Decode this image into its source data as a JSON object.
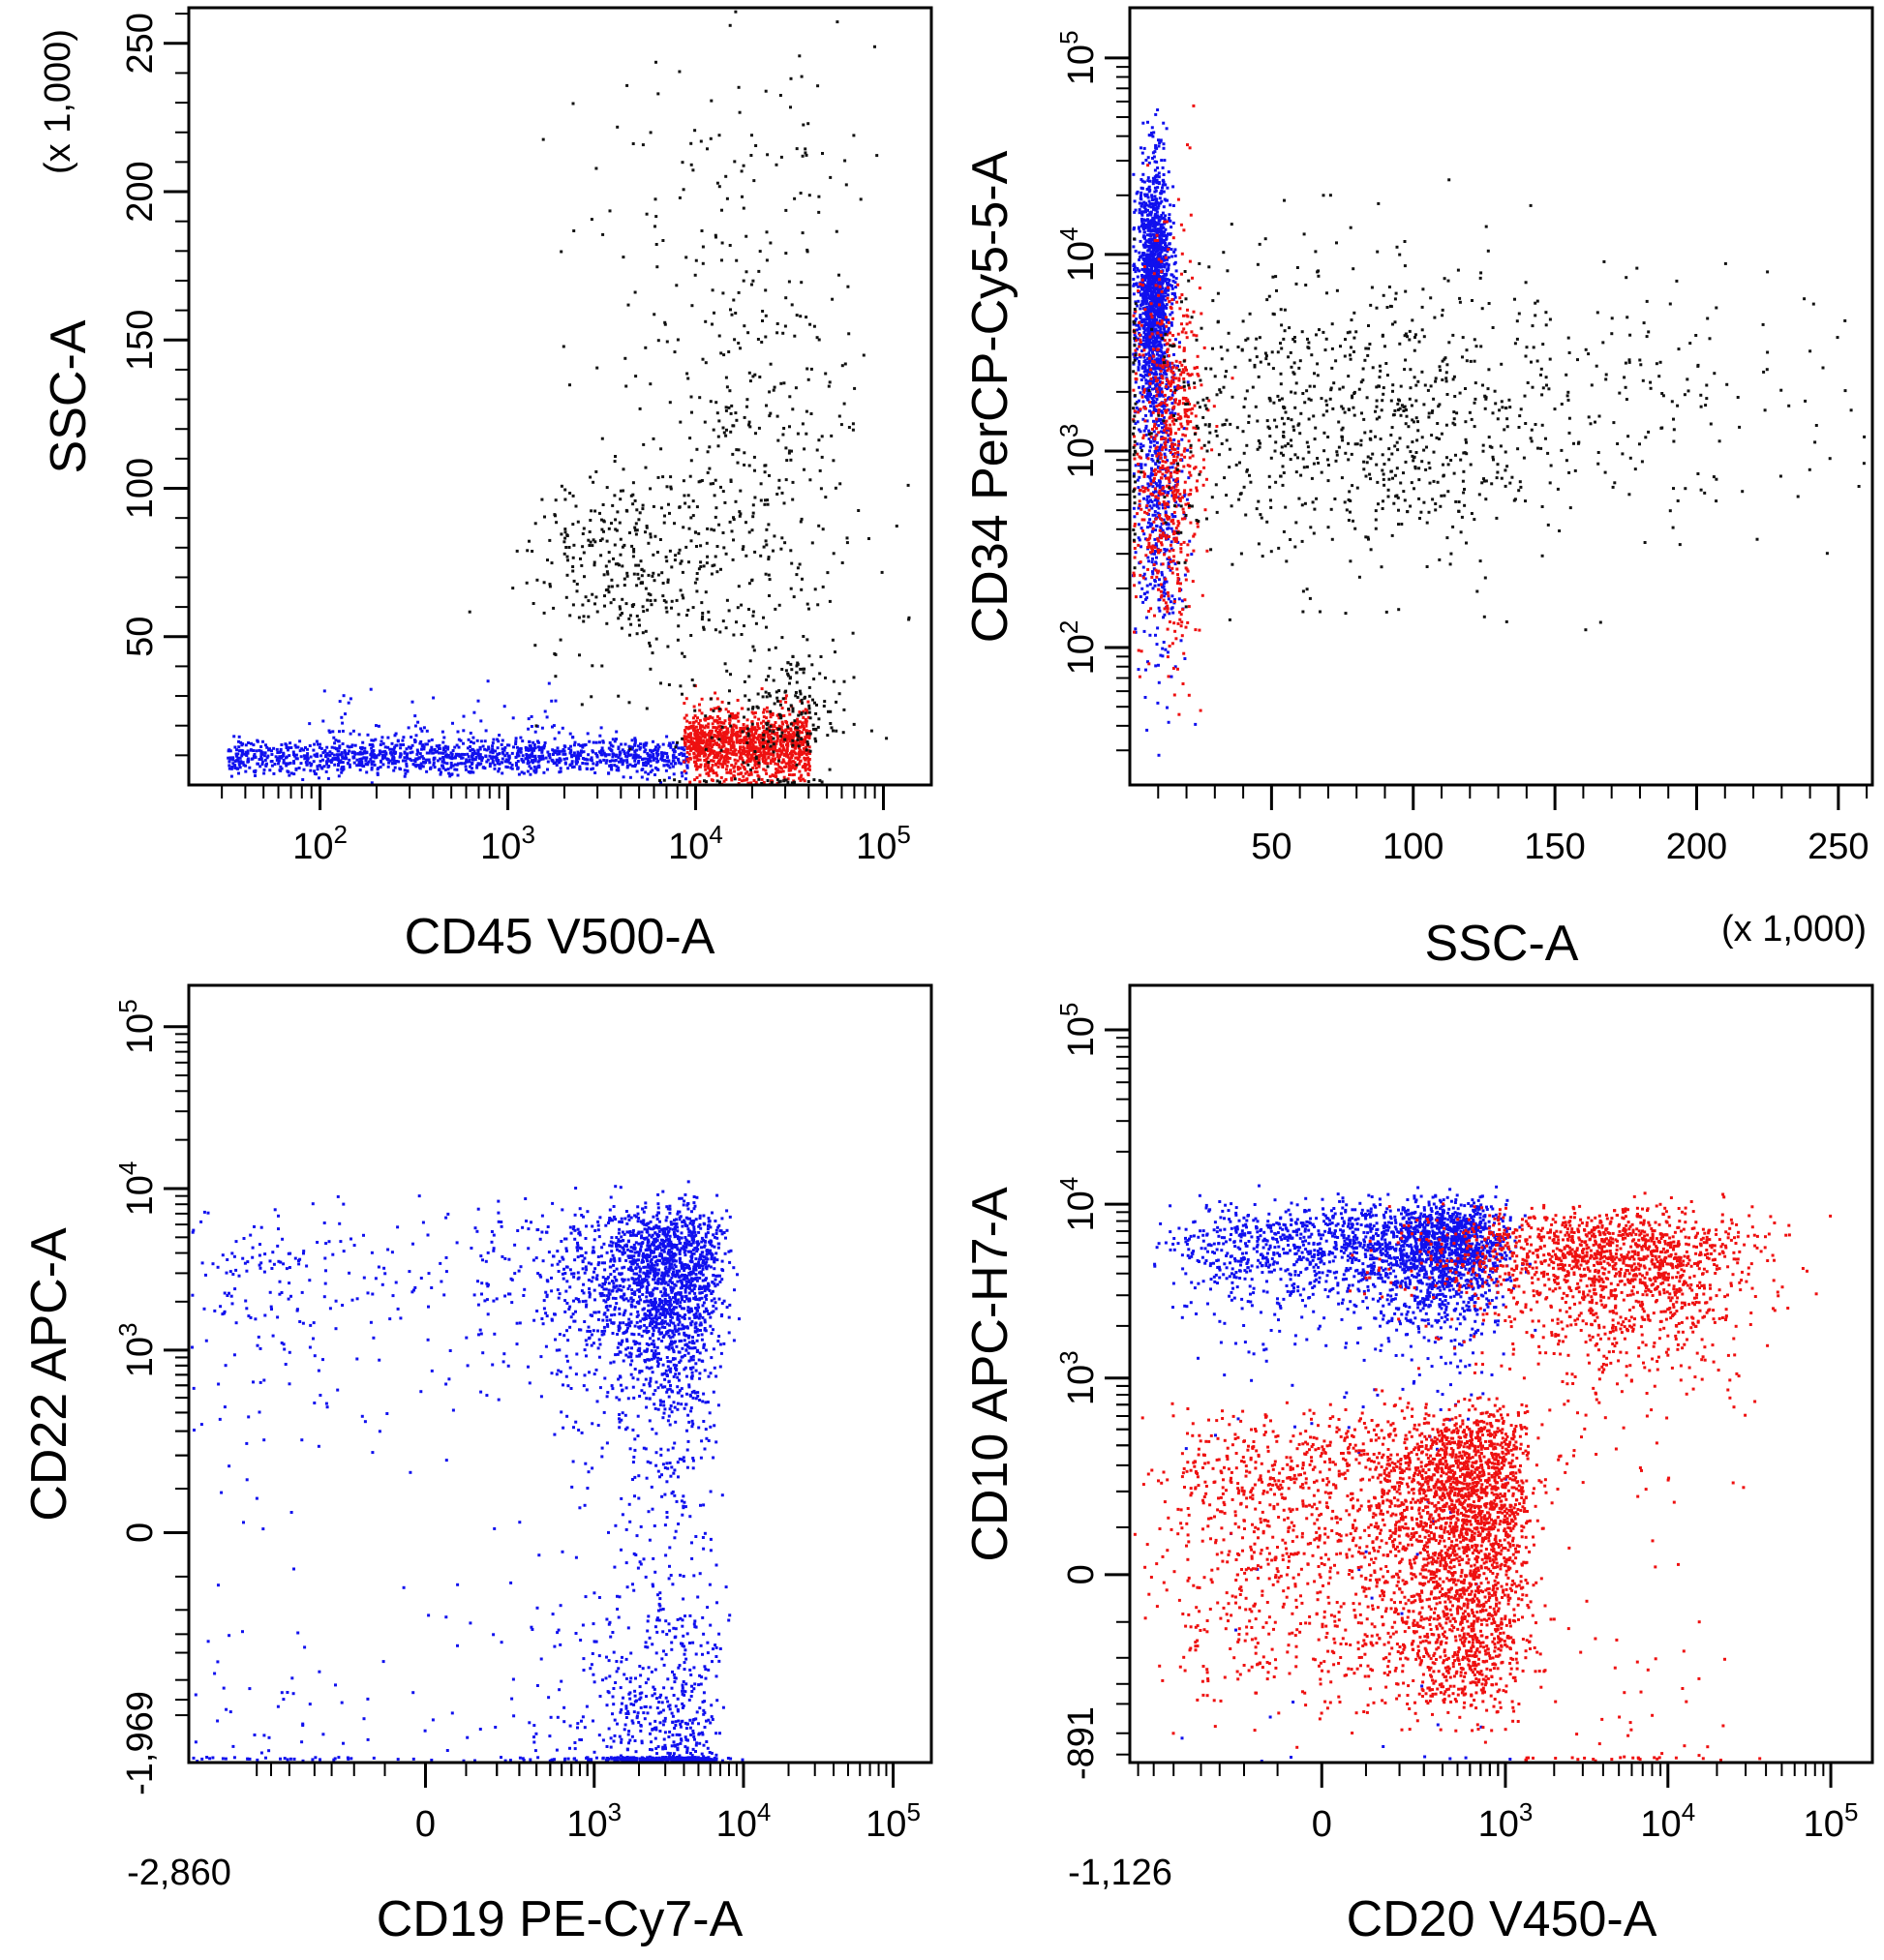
{
  "figure": {
    "colors": {
      "background": "#ffffff",
      "axis": "#000000",
      "blue": "#1010ee",
      "red": "#ee1010",
      "black": "#111111"
    }
  },
  "chart_data": [
    {
      "id": "tl",
      "type": "scatter",
      "xlabel": "CD45 V500-A",
      "ylabel": "SSC-A",
      "ylabel_multiplier": "(x 1,000)",
      "x_scale": "log",
      "xlim": [
        20,
        180000
      ],
      "y_scale": "linear",
      "ylim": [
        0,
        262
      ],
      "x_ticks": [
        {
          "value": 100,
          "base": "10",
          "exp": "2"
        },
        {
          "value": 1000,
          "base": "10",
          "exp": "3"
        },
        {
          "value": 10000,
          "base": "10",
          "exp": "4"
        },
        {
          "value": 100000,
          "base": "10",
          "exp": "5"
        }
      ],
      "y_ticks": [
        {
          "value": 50,
          "label": "50"
        },
        {
          "value": 100,
          "label": "100"
        },
        {
          "value": 150,
          "label": "150"
        },
        {
          "value": 200,
          "label": "200"
        },
        {
          "value": 250,
          "label": "250"
        }
      ],
      "series": [
        {
          "name": "blue population",
          "color": "#1010ee",
          "clusters": [
            {
              "n": 1300,
              "x_log": [
                1.5,
                3.95
              ],
              "y_mean": 10,
              "y_sd": 3
            },
            {
              "n": 100,
              "x_log": [
                2.0,
                3.3
              ],
              "y_mean": 18,
              "y_sd": 6
            }
          ]
        },
        {
          "name": "red population",
          "color": "#ee1010",
          "clusters": [
            {
              "n": 1200,
              "x_log": [
                3.93,
                4.6
              ],
              "y_mean": 14,
              "y_sd": 6
            }
          ]
        },
        {
          "name": "black population",
          "color": "#111111",
          "clusters": [
            {
              "n": 320,
              "x_center_log": 3.6,
              "x_sd_log": 0.25,
              "y_mean": 75,
              "y_sd": 18
            },
            {
              "n": 480,
              "x_center_log": 4.3,
              "x_sd_log": 0.3,
              "y_mean": 100,
              "y_sd": 55
            },
            {
              "n": 150,
              "x_center_log": 4.5,
              "x_sd_log": 0.15,
              "y_mean": 25,
              "y_sd": 10
            },
            {
              "n": 80,
              "x_center_log": 4.1,
              "x_sd_log": 0.4,
              "y_mean": 200,
              "y_sd": 35
            }
          ]
        }
      ]
    },
    {
      "id": "tr",
      "type": "scatter",
      "xlabel": "SSC-A",
      "xlabel_multiplier": "(x 1,000)",
      "ylabel": "CD34 PerCP-Cy5-5-A",
      "x_scale": "linear",
      "xlim": [
        0,
        262
      ],
      "y_scale": "log",
      "ylim": [
        20,
        180000
      ],
      "x_ticks": [
        {
          "value": 50,
          "label": "50"
        },
        {
          "value": 100,
          "label": "100"
        },
        {
          "value": 150,
          "label": "150"
        },
        {
          "value": 200,
          "label": "200"
        },
        {
          "value": 250,
          "label": "250"
        }
      ],
      "y_ticks": [
        {
          "value": 100,
          "base": "10",
          "exp": "2"
        },
        {
          "value": 1000,
          "base": "10",
          "exp": "3"
        },
        {
          "value": 10000,
          "base": "10",
          "exp": "4"
        },
        {
          "value": 100000,
          "base": "10",
          "exp": "5"
        }
      ],
      "series": [
        {
          "name": "blue population",
          "color": "#1010ee",
          "clusters": [
            {
              "n": 1500,
              "x_mean": 8,
              "x_sd": 3,
              "y_center_log": 3.85,
              "y_sd_log": 0.3
            },
            {
              "n": 500,
              "x_mean": 10,
              "x_sd": 4,
              "y_center_log": 2.8,
              "y_sd_log": 0.45
            }
          ]
        },
        {
          "name": "red population",
          "color": "#ee1010",
          "clusters": [
            {
              "n": 700,
              "x_mean": 13,
              "x_sd": 6,
              "y_center_log": 3.0,
              "y_sd_log": 0.5
            }
          ]
        },
        {
          "name": "black population",
          "color": "#111111",
          "clusters": [
            {
              "n": 900,
              "x_mean": 80,
              "x_sd": 45,
              "y_center_log": 3.15,
              "y_sd_log": 0.38
            },
            {
              "n": 150,
              "x_mean": 180,
              "x_sd": 50,
              "y_center_log": 3.25,
              "y_sd_log": 0.35
            }
          ]
        }
      ]
    },
    {
      "id": "bl",
      "type": "scatter",
      "xlabel": "CD19 PE-Cy7-A",
      "ylabel": "CD22 APC-A",
      "x_scale": "biexponential",
      "xlim": [
        -2860,
        180000
      ],
      "x_min_label": "-2,860",
      "y_scale": "biexponential",
      "ylim": [
        -1969,
        180000
      ],
      "y_min_label": "-1,969",
      "x_ticks": [
        {
          "value": 0,
          "label": "0"
        },
        {
          "value": 1000,
          "base": "10",
          "exp": "3"
        },
        {
          "value": 10000,
          "base": "10",
          "exp": "4"
        },
        {
          "value": 100000,
          "base": "10",
          "exp": "5"
        }
      ],
      "y_ticks": [
        {
          "value": 0,
          "label": "0"
        },
        {
          "value": 1000,
          "base": "10",
          "exp": "3"
        },
        {
          "value": 10000,
          "base": "10",
          "exp": "4"
        },
        {
          "value": 100000,
          "base": "10",
          "exp": "5"
        }
      ],
      "series": [
        {
          "name": "blue population",
          "color": "#1010ee",
          "clusters": [
            {
              "n": 3200,
              "x_mean": 2500,
              "x_sd": 1900,
              "y_mean": 1500,
              "y_sd": 2600
            }
          ]
        }
      ]
    },
    {
      "id": "br",
      "type": "scatter",
      "xlabel": "CD20 V450-A",
      "ylabel": "CD10 APC-H7-A",
      "x_scale": "biexponential",
      "xlim": [
        -1126,
        180000
      ],
      "x_min_label": "-1,126",
      "y_scale": "biexponential",
      "ylim": [
        -891,
        180000
      ],
      "y_min_label": "-891",
      "x_ticks": [
        {
          "value": 0,
          "label": "0"
        },
        {
          "value": 1000,
          "base": "10",
          "exp": "3"
        },
        {
          "value": 10000,
          "base": "10",
          "exp": "4"
        },
        {
          "value": 100000,
          "base": "10",
          "exp": "5"
        }
      ],
      "y_ticks": [
        {
          "value": 0,
          "label": "0"
        },
        {
          "value": 1000,
          "base": "10",
          "exp": "3"
        },
        {
          "value": 10000,
          "base": "10",
          "exp": "4"
        },
        {
          "value": 100000,
          "base": "10",
          "exp": "5"
        }
      ],
      "series": [
        {
          "name": "blue population",
          "color": "#1010ee",
          "clusters": [
            {
              "n": 2400,
              "x_mean": 250,
              "x_sd": 320,
              "y_mean": 5500,
              "y_sd": 2200
            }
          ]
        },
        {
          "name": "red population",
          "color": "#ee1010",
          "clusters": [
            {
              "n": 3600,
              "x_mean": 380,
              "x_sd": 420,
              "y_mean": 100,
              "y_sd": 230
            },
            {
              "n": 1500,
              "x_center_log": 3.7,
              "x_sd_log": 0.4,
              "y_mean": 4200,
              "y_sd": 2400
            },
            {
              "n": 250,
              "x_center_log": 2.9,
              "x_sd_log": 0.4,
              "y_mean": 5000,
              "y_sd": 2200
            }
          ]
        }
      ]
    }
  ]
}
